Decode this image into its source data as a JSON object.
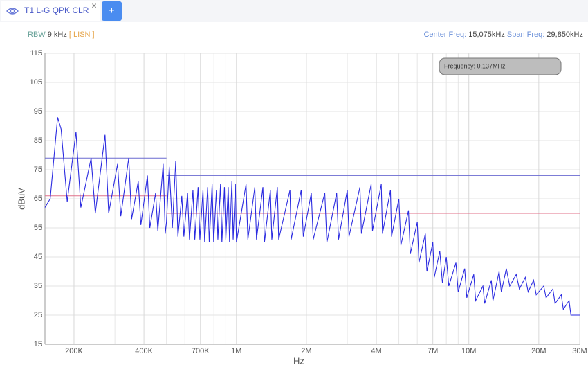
{
  "tab": {
    "label": "T1 L-G QPK CLR",
    "close": "×",
    "add": "+"
  },
  "header": {
    "rbw_label": "RBW",
    "rbw_value": "9 kHz",
    "lisn": "[ LISN ]",
    "center_label": "Center Freq:",
    "center_value": "15,075kHz",
    "span_label": "Span Freq:",
    "span_value": "29,850kHz"
  },
  "chart_data": {
    "type": "line",
    "xlabel": "Hz",
    "ylabel": "dBuV",
    "annotation": "Frequency: 0.137MHz",
    "xscale": "log",
    "grid": true,
    "xlim": [
      150000,
      30000000
    ],
    "xticks": [
      {
        "value": 200000,
        "label": "200K"
      },
      {
        "value": 400000,
        "label": "400K"
      },
      {
        "value": 700000,
        "label": "700K"
      },
      {
        "value": 1000000,
        "label": "1M"
      },
      {
        "value": 2000000,
        "label": "2M"
      },
      {
        "value": 4000000,
        "label": "4M"
      },
      {
        "value": 7000000,
        "label": "7M"
      },
      {
        "value": 10000000,
        "label": "10M"
      },
      {
        "value": 20000000,
        "label": "20M"
      },
      {
        "value": 30000000,
        "label": "30M"
      }
    ],
    "xminor": [
      300000,
      500000,
      600000,
      800000,
      900000,
      3000000,
      5000000,
      6000000,
      8000000,
      9000000
    ],
    "ylim": [
      15,
      115
    ],
    "yticks": [
      15,
      25,
      35,
      45,
      55,
      65,
      75,
      85,
      95,
      105,
      115
    ],
    "series": [
      {
        "color": "#6a6ad0",
        "x": [
          150000,
          500000,
          500000,
          500000,
          30000000
        ],
        "values": [
          79,
          79,
          null,
          73,
          73
        ]
      },
      {
        "color": "#e0708a",
        "x": [
          150000,
          500000,
          500000,
          500000,
          30000000
        ],
        "values": [
          66,
          66,
          null,
          60,
          60
        ]
      },
      {
        "color": "#2a2ae0",
        "x": [
          150000,
          158000,
          170000,
          176000,
          187000,
          204000,
          214000,
          237000,
          247000,
          272000,
          282000,
          308000,
          318000,
          344000,
          354000,
          378000,
          388000,
          414000,
          424000,
          449000,
          459000,
          484000,
          494000,
          500000,
          514000,
          530000,
          548000,
          560000,
          582000,
          594000,
          616000,
          628000,
          650000,
          662000,
          684000,
          696000,
          718000,
          730000,
          752000,
          764000,
          786000,
          798000,
          820000,
          832000,
          854000,
          866000,
          888000,
          900000,
          922000,
          934000,
          956000,
          968000,
          990000,
          1000000,
          1100000,
          1120000,
          1200000,
          1220000,
          1300000,
          1320000,
          1400000,
          1420000,
          1500000,
          1520000,
          1700000,
          1720000,
          1900000,
          1940000,
          2100000,
          2140000,
          2400000,
          2450000,
          2700000,
          2750000,
          3000000,
          3050000,
          3400000,
          3450000,
          3800000,
          3850000,
          4200000,
          4250000,
          4600000,
          4650000,
          5000000,
          5100000,
          5500000,
          5600000,
          6000000,
          6100000,
          6500000,
          6600000,
          7000000,
          7100000,
          7500000,
          7700000,
          8000000,
          8200000,
          8800000,
          9000000,
          9600000,
          9800000,
          10500000,
          10700000,
          11500000,
          11700000,
          12500000,
          12700000,
          13500000,
          13800000,
          14500000,
          15000000,
          16000000,
          16500000,
          17500000,
          18000000,
          19000000,
          19500000,
          21000000,
          21500000,
          23000000,
          23500000,
          25000000,
          25500000,
          27000000,
          27500000,
          30000000
        ],
        "values": [
          62,
          65,
          93,
          89,
          64,
          88,
          62,
          79,
          60,
          87,
          60,
          77,
          59,
          79,
          58,
          71,
          56,
          73,
          55,
          67,
          54,
          77,
          53,
          57,
          76,
          55,
          78,
          52,
          66,
          52,
          67,
          51,
          68,
          51,
          69,
          51,
          68,
          50,
          69,
          50,
          70,
          50,
          68,
          51,
          70,
          50,
          69,
          51,
          69,
          50,
          71,
          51,
          70,
          50,
          70,
          51,
          69,
          51,
          69,
          50,
          68,
          51,
          69,
          51,
          68,
          51,
          68,
          52,
          67,
          51,
          67,
          50,
          67,
          51,
          68,
          52,
          69,
          53,
          70,
          54,
          70,
          53,
          68,
          52,
          65,
          49,
          61,
          46,
          57,
          43,
          53,
          40,
          50,
          38,
          47,
          36,
          45,
          35,
          43,
          33,
          41,
          31,
          39,
          30,
          35,
          29,
          37,
          30,
          40,
          33,
          41,
          35,
          39,
          34,
          38,
          33,
          37,
          32,
          35,
          31,
          34,
          29,
          32,
          27,
          30,
          25,
          25
        ]
      }
    ]
  }
}
